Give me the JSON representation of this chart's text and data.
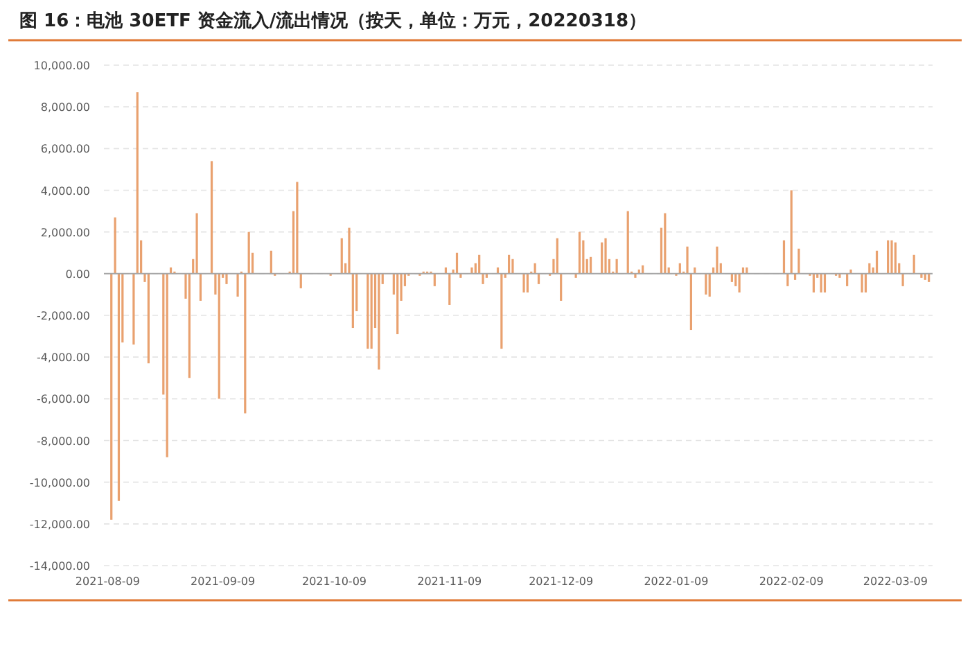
{
  "chart_data": {
    "type": "bar",
    "title": "图 16：电池 30ETF 资金流入/流出情况（按天，单位：万元，20220318）",
    "color": "#E9A16F",
    "grid": "y",
    "xlim": [
      "2021-08-08",
      "2022-03-19"
    ],
    "ylim": [
      -14000,
      10000
    ],
    "xticks": [
      {
        "value": "2021-08-09",
        "label": "2021-08-09"
      },
      {
        "value": "2021-09-09",
        "label": "2021-09-09"
      },
      {
        "value": "2021-10-09",
        "label": "2021-10-09"
      },
      {
        "value": "2021-11-09",
        "label": "2021-11-09"
      },
      {
        "value": "2021-12-09",
        "label": "2021-12-09"
      },
      {
        "value": "2022-01-09",
        "label": "2022-01-09"
      },
      {
        "value": "2022-02-09",
        "label": "2022-02-09"
      },
      {
        "value": "2022-03-09",
        "label": "2022-03-09"
      }
    ],
    "yticks": [
      {
        "value": 10000,
        "label": "10,000.00"
      },
      {
        "value": 8000,
        "label": "8,000.00"
      },
      {
        "value": 6000,
        "label": "6,000.00"
      },
      {
        "value": 4000,
        "label": "4,000.00"
      },
      {
        "value": 2000,
        "label": "2,000.00"
      },
      {
        "value": 0,
        "label": "0.00"
      },
      {
        "value": -2000,
        "label": "-2,000.00"
      },
      {
        "value": -4000,
        "label": "-4,000.00"
      },
      {
        "value": -6000,
        "label": "-6,000.00"
      },
      {
        "value": -8000,
        "label": "-8,000.00"
      },
      {
        "value": -10000,
        "label": "-10,000.00"
      },
      {
        "value": -12000,
        "label": "-12,000.00"
      },
      {
        "value": -14000,
        "label": "-14,000.00"
      }
    ],
    "x": [
      "2021-08-10",
      "2021-08-11",
      "2021-08-12",
      "2021-08-13",
      "2021-08-16",
      "2021-08-17",
      "2021-08-18",
      "2021-08-19",
      "2021-08-20",
      "2021-08-24",
      "2021-08-25",
      "2021-08-26",
      "2021-08-27",
      "2021-08-30",
      "2021-08-31",
      "2021-09-01",
      "2021-09-02",
      "2021-09-03",
      "2021-09-06",
      "2021-09-07",
      "2021-09-08",
      "2021-09-09",
      "2021-09-10",
      "2021-09-13",
      "2021-09-14",
      "2021-09-15",
      "2021-09-16",
      "2021-09-17",
      "2021-09-22",
      "2021-09-23",
      "2021-09-27",
      "2021-09-28",
      "2021-09-29",
      "2021-09-30",
      "2021-10-08",
      "2021-10-11",
      "2021-10-12",
      "2021-10-13",
      "2021-10-14",
      "2021-10-15",
      "2021-10-18",
      "2021-10-19",
      "2021-10-20",
      "2021-10-21",
      "2021-10-22",
      "2021-10-25",
      "2021-10-26",
      "2021-10-27",
      "2021-10-28",
      "2021-10-29",
      "2021-11-01",
      "2021-11-02",
      "2021-11-03",
      "2021-11-04",
      "2021-11-05",
      "2021-11-08",
      "2021-11-09",
      "2021-11-10",
      "2021-11-11",
      "2021-11-12",
      "2021-11-15",
      "2021-11-16",
      "2021-11-17",
      "2021-11-18",
      "2021-11-19",
      "2021-11-22",
      "2021-11-23",
      "2021-11-24",
      "2021-11-25",
      "2021-11-26",
      "2021-11-29",
      "2021-11-30",
      "2021-12-01",
      "2021-12-02",
      "2021-12-03",
      "2021-12-06",
      "2021-12-07",
      "2021-12-08",
      "2021-12-09",
      "2021-12-13",
      "2021-12-14",
      "2021-12-15",
      "2021-12-16",
      "2021-12-17",
      "2021-12-20",
      "2021-12-21",
      "2021-12-22",
      "2021-12-23",
      "2021-12-24",
      "2021-12-27",
      "2021-12-28",
      "2021-12-29",
      "2021-12-30",
      "2021-12-31",
      "2022-01-05",
      "2022-01-06",
      "2022-01-07",
      "2022-01-09",
      "2022-01-10",
      "2022-01-11",
      "2022-01-12",
      "2022-01-13",
      "2022-01-14",
      "2022-01-17",
      "2022-01-18",
      "2022-01-19",
      "2022-01-20",
      "2022-01-21",
      "2022-01-24",
      "2022-01-25",
      "2022-01-26",
      "2022-01-27",
      "2022-01-28",
      "2022-02-07",
      "2022-02-08",
      "2022-02-09",
      "2022-02-10",
      "2022-02-11",
      "2022-02-14",
      "2022-02-15",
      "2022-02-16",
      "2022-02-17",
      "2022-02-18",
      "2022-02-21",
      "2022-02-22",
      "2022-02-24",
      "2022-02-25",
      "2022-02-28",
      "2022-03-01",
      "2022-03-02",
      "2022-03-03",
      "2022-03-04",
      "2022-03-07",
      "2022-03-08",
      "2022-03-09",
      "2022-03-10",
      "2022-03-11",
      "2022-03-14",
      "2022-03-16",
      "2022-03-17",
      "2022-03-18"
    ],
    "values": [
      -11800,
      2700,
      -10900,
      -3300,
      -3400,
      8700,
      1600,
      -400,
      -4300,
      -5800,
      -8800,
      300,
      100,
      -1200,
      -5000,
      700,
      2900,
      -1300,
      5400,
      -1000,
      -6000,
      -200,
      -500,
      -1100,
      100,
      -6700,
      2000,
      1000,
      1100,
      -100,
      100,
      3000,
      4400,
      -700,
      -100,
      1700,
      500,
      2200,
      -2600,
      -1800,
      -3600,
      -3600,
      -2600,
      -4600,
      -500,
      -1000,
      -2900,
      -1300,
      -600,
      -100,
      -100,
      100,
      100,
      100,
      -600,
      300,
      -1500,
      200,
      1000,
      -200,
      300,
      500,
      900,
      -500,
      -200,
      300,
      -3600,
      -200,
      900,
      700,
      -900,
      -900,
      100,
      500,
      -500,
      -100,
      700,
      1700,
      -1300,
      -200,
      2000,
      1600,
      700,
      800,
      1500,
      1700,
      700,
      100,
      700,
      3000,
      100,
      -200,
      200,
      400,
      2200,
      2900,
      300,
      -100,
      500,
      100,
      1300,
      -2700,
      300,
      -1000,
      -1100,
      300,
      1300,
      500,
      -400,
      -600,
      -900,
      300,
      300,
      1600,
      -600,
      4000,
      -300,
      1200,
      -100,
      -900,
      -200,
      -900,
      -900,
      -100,
      -200,
      -600,
      200,
      -900,
      -900,
      500,
      300,
      1100,
      1600,
      1600,
      1500,
      500,
      -600,
      900,
      -200,
      -300,
      -400
    ]
  }
}
